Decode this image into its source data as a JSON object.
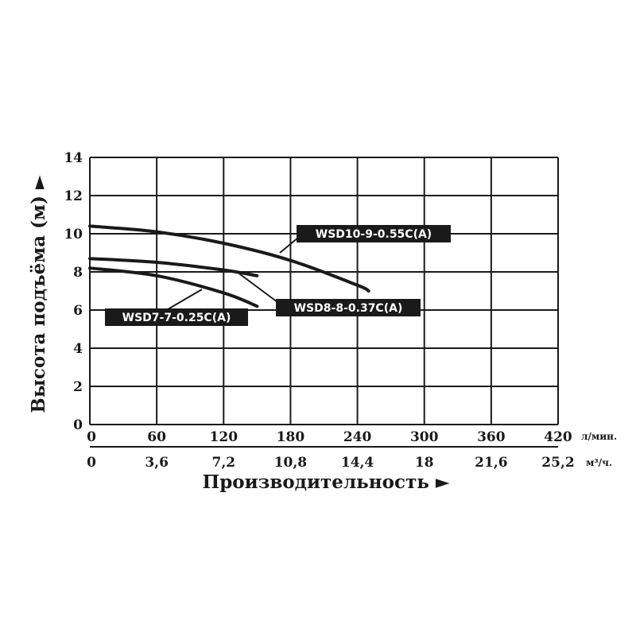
{
  "chart_data": {
    "type": "line",
    "title": "",
    "xlabel": "Производительность ►",
    "ylabel": "Высота подъёма (м) ►",
    "x_unit_primary": "л/мин.",
    "x_unit_secondary": "м³/ч.",
    "xlim": [
      0,
      420
    ],
    "ylim": [
      0,
      14
    ],
    "x_ticks_primary": [
      "0",
      "60",
      "120",
      "180",
      "240",
      "300",
      "360",
      "420"
    ],
    "x_ticks_secondary": [
      "0",
      "3,6",
      "7,2",
      "10,8",
      "14,4",
      "18",
      "21,6",
      "25,2"
    ],
    "y_ticks": [
      "0",
      "2",
      "4",
      "6",
      "8",
      "10",
      "12",
      "14"
    ],
    "grid": true,
    "series": [
      {
        "name": "WSD10-9-0.55C(A)",
        "x": [
          0,
          60,
          120,
          180,
          240,
          250
        ],
        "y": [
          10.4,
          10.1,
          9.5,
          8.6,
          7.3,
          7.0
        ]
      },
      {
        "name": "WSD8-8-0.37C(A)",
        "x": [
          0,
          60,
          120,
          150
        ],
        "y": [
          8.7,
          8.5,
          8.1,
          7.8
        ]
      },
      {
        "name": "WSD7-7-0.25C(A)",
        "x": [
          0,
          60,
          120,
          150
        ],
        "y": [
          8.2,
          7.8,
          6.9,
          6.2
        ]
      }
    ]
  }
}
